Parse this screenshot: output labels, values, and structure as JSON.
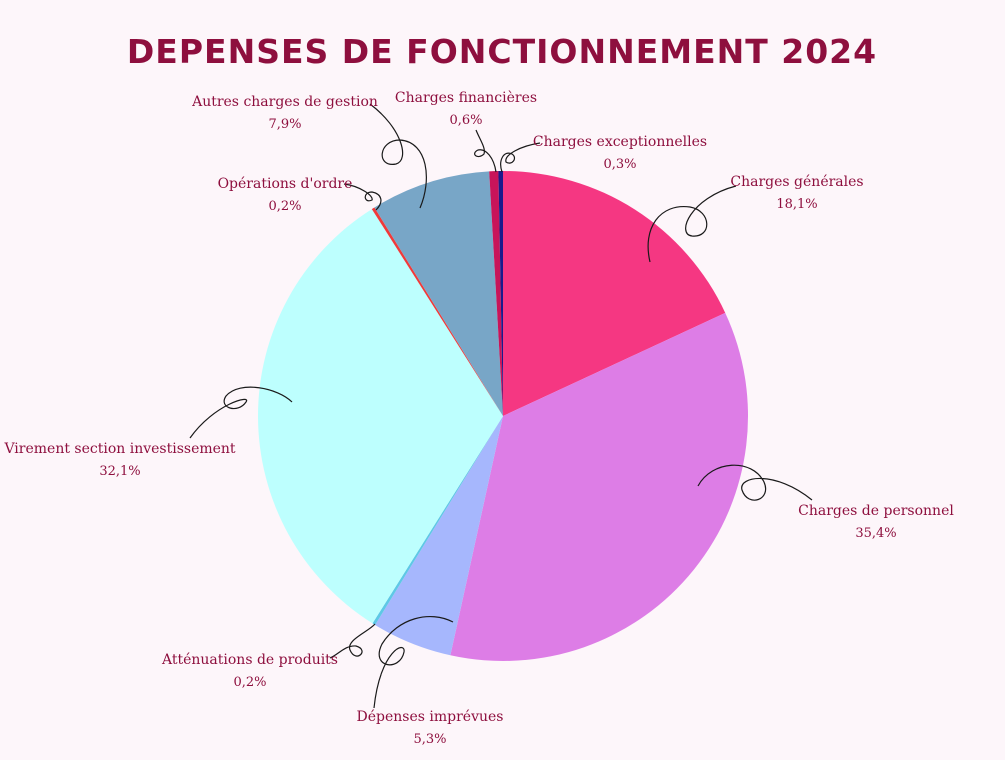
{
  "chart_data": {
    "type": "pie",
    "title": "DEPENSES DE FONCTIONNEMENT 2024",
    "slices": [
      {
        "key": "generales",
        "name": "Charges générales",
        "value": 18.1,
        "label": "18,1%",
        "color": "#F53782"
      },
      {
        "key": "personnel",
        "name": "Charges de personnel",
        "value": 35.4,
        "label": "35,4%",
        "color": "#DD7DE6"
      },
      {
        "key": "imprevues",
        "name": "Dépenses imprévues",
        "value": 5.3,
        "label": "5,3%",
        "color": "#A6B7FD"
      },
      {
        "key": "attenuations",
        "name": "Atténuations de produits",
        "value": 0.2,
        "label": "0,2%",
        "color": "#5EC8E6"
      },
      {
        "key": "virement",
        "name": "Virement section investissement",
        "value": 32.1,
        "label": "32,1%",
        "color": "#BDFFFE"
      },
      {
        "key": "ordre",
        "name": "Opérations d'ordre",
        "value": 0.2,
        "label": "0,2%",
        "color": "#F03A3A"
      },
      {
        "key": "autres",
        "name": "Autres charges de gestion",
        "value": 7.9,
        "label": "7,9%",
        "color": "#78A6C7"
      },
      {
        "key": "financieres",
        "name": "Charges financières",
        "value": 0.6,
        "label": "0,6%",
        "color": "#C8145A"
      },
      {
        "key": "exceptionnelles",
        "name": "Charges exceptionnelles",
        "value": 0.3,
        "label": "0,3%",
        "color": "#1A1A8C"
      }
    ]
  }
}
